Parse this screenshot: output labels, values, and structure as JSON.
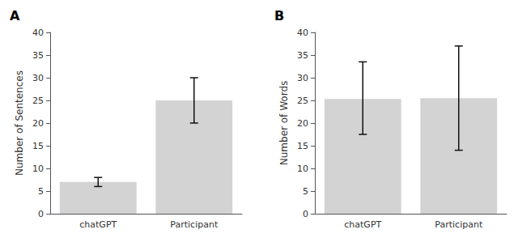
{
  "chart_data": [
    {
      "type": "bar",
      "title": "A",
      "categories": [
        "chatGPT",
        "Participant"
      ],
      "values": [
        7,
        25
      ],
      "error_upper": [
        8,
        30
      ],
      "error_lower": [
        6,
        20
      ],
      "ylabel": "Number of Sentences",
      "ylim": [
        0,
        40
      ],
      "yticks": [
        0,
        5,
        10,
        15,
        20,
        25,
        30,
        35,
        40
      ],
      "color": "#d3d3d3",
      "grid": false
    },
    {
      "type": "bar",
      "title": "B",
      "categories": [
        "chatGPT",
        "Participant"
      ],
      "values": [
        25.3,
        25.5
      ],
      "error_upper": [
        33.5,
        37
      ],
      "error_lower": [
        17.5,
        14
      ],
      "ylabel": "Number of Words",
      "ylim": [
        0,
        40
      ],
      "yticks": [
        0,
        5,
        10,
        15,
        20,
        25,
        30,
        35,
        40
      ],
      "color": "#d3d3d3",
      "grid": false
    }
  ]
}
